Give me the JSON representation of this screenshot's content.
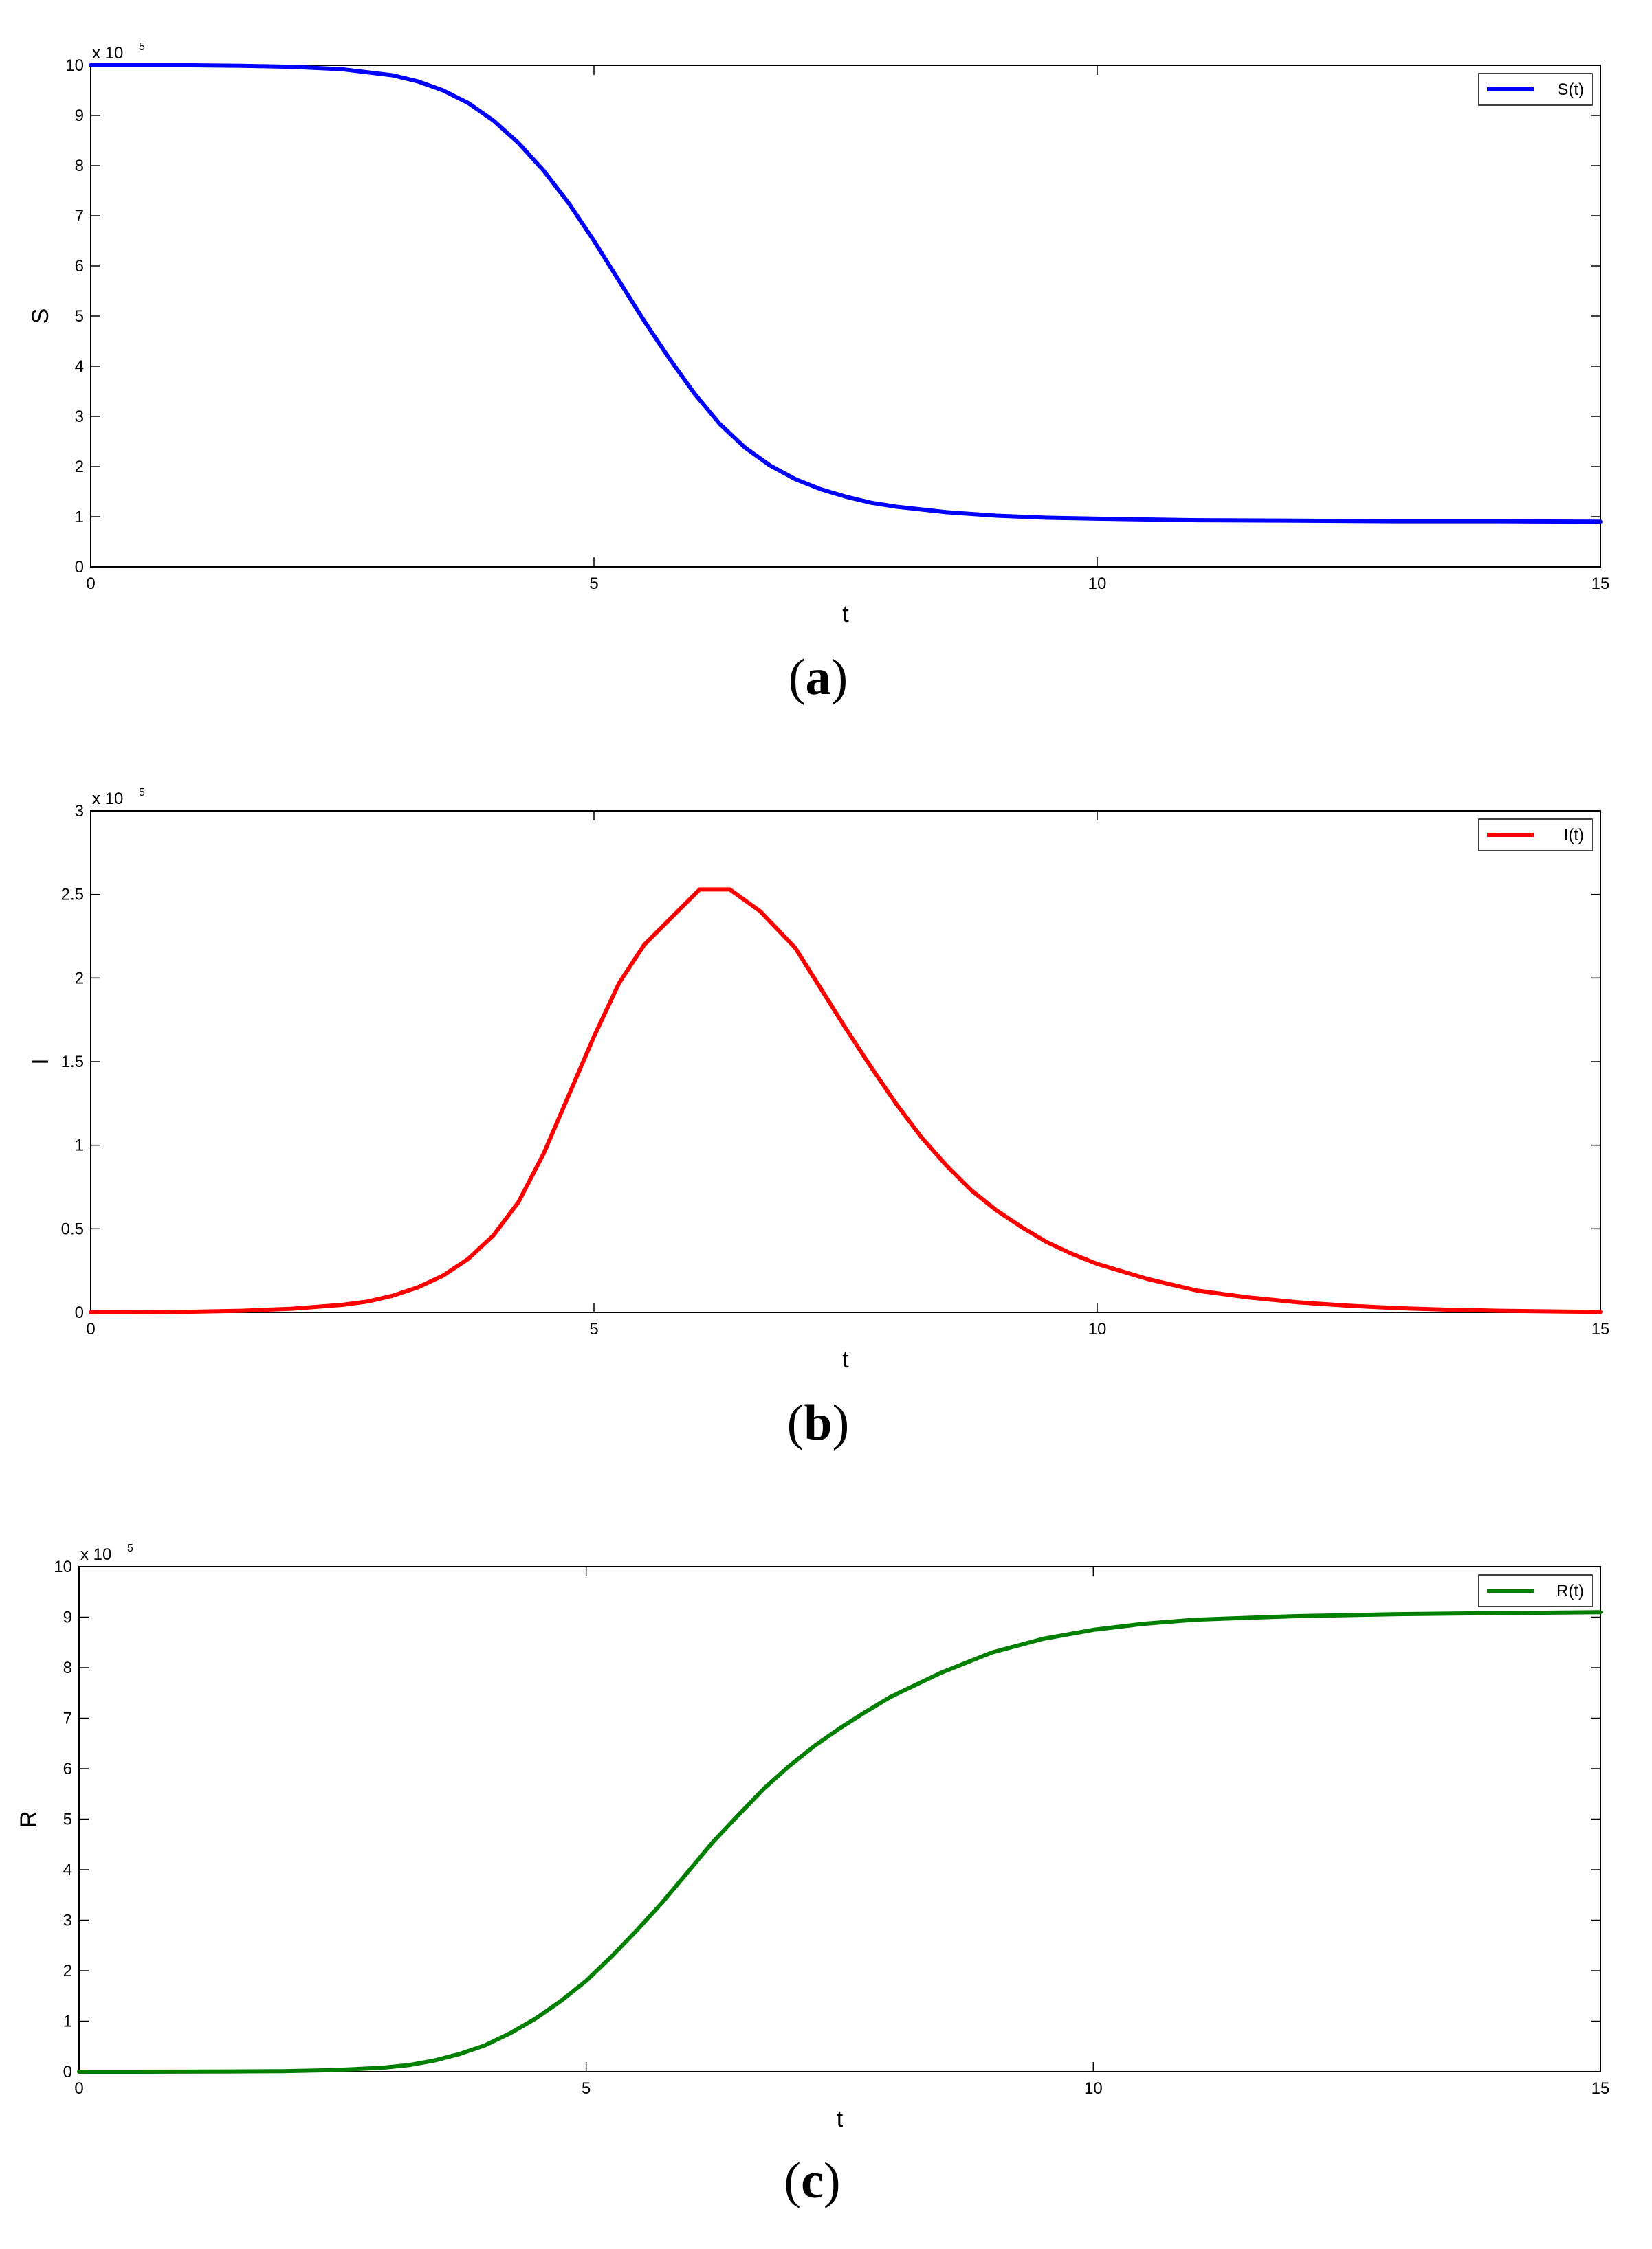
{
  "chart_data": [
    {
      "type": "line",
      "caption_letter": "a",
      "xlabel": "t",
      "ylabel": "S",
      "multiplier_base": "x 10",
      "multiplier_exp": "5",
      "xlim": [
        0,
        15
      ],
      "ylim": [
        0,
        10
      ],
      "xticks": [
        0,
        5,
        10,
        15
      ],
      "yticks": [
        0,
        1,
        2,
        3,
        4,
        5,
        6,
        7,
        8,
        9,
        10
      ],
      "grid": false,
      "legend_position": "top-right",
      "series": [
        {
          "name": "S(t)",
          "color": "#0000ff",
          "x": [
            0,
            0.5,
            1,
            1.5,
            2,
            2.5,
            3,
            3.25,
            3.5,
            3.75,
            4,
            4.25,
            4.5,
            4.75,
            5,
            5.25,
            5.5,
            5.75,
            6,
            6.25,
            6.5,
            6.75,
            7,
            7.25,
            7.5,
            7.75,
            8,
            8.5,
            9,
            9.5,
            10,
            11,
            12,
            13,
            14,
            15
          ],
          "y": [
            10,
            10,
            10,
            9.99,
            9.97,
            9.92,
            9.8,
            9.68,
            9.5,
            9.25,
            8.9,
            8.45,
            7.9,
            7.25,
            6.5,
            5.7,
            4.9,
            4.15,
            3.45,
            2.85,
            2.38,
            2.02,
            1.75,
            1.55,
            1.4,
            1.28,
            1.2,
            1.09,
            1.02,
            0.98,
            0.96,
            0.93,
            0.92,
            0.91,
            0.91,
            0.9
          ]
        }
      ]
    },
    {
      "type": "line",
      "caption_letter": "b",
      "xlabel": "t",
      "ylabel": "I",
      "multiplier_base": "x 10",
      "multiplier_exp": "5",
      "xlim": [
        0,
        15
      ],
      "ylim": [
        0,
        3
      ],
      "xticks": [
        0,
        5,
        10,
        15
      ],
      "yticks": [
        0,
        0.5,
        1,
        1.5,
        2,
        2.5,
        3
      ],
      "grid": false,
      "legend_position": "top-right",
      "series": [
        {
          "name": "I(t)",
          "color": "#ff0000",
          "x": [
            0,
            0.5,
            1,
            1.5,
            2,
            2.5,
            2.75,
            3,
            3.25,
            3.5,
            3.75,
            4,
            4.25,
            4.5,
            4.75,
            5,
            5.25,
            5.5,
            5.8,
            6.05,
            6.35,
            6.65,
            7,
            7.25,
            7.5,
            7.75,
            8,
            8.25,
            8.5,
            8.75,
            9,
            9.25,
            9.5,
            9.75,
            10,
            10.5,
            11,
            11.5,
            12,
            12.5,
            13,
            13.5,
            14,
            14.5,
            15
          ],
          "y": [
            0,
            0.001,
            0.004,
            0.01,
            0.022,
            0.045,
            0.065,
            0.1,
            0.15,
            0.22,
            0.32,
            0.46,
            0.66,
            0.95,
            1.3,
            1.65,
            1.97,
            2.2,
            2.38,
            2.53,
            2.53,
            2.4,
            2.18,
            1.94,
            1.7,
            1.47,
            1.25,
            1.05,
            0.88,
            0.73,
            0.61,
            0.51,
            0.42,
            0.35,
            0.29,
            0.2,
            0.13,
            0.09,
            0.06,
            0.04,
            0.025,
            0.016,
            0.01,
            0.006,
            0.003
          ]
        }
      ]
    },
    {
      "type": "line",
      "caption_letter": "c",
      "xlabel": "t",
      "ylabel": "R",
      "multiplier_base": "x 10",
      "multiplier_exp": "5",
      "xlim": [
        0,
        15
      ],
      "ylim": [
        0,
        10
      ],
      "xticks": [
        0,
        5,
        10,
        15
      ],
      "yticks": [
        0,
        1,
        2,
        3,
        4,
        5,
        6,
        7,
        8,
        9,
        10
      ],
      "grid": false,
      "legend_position": "top-right",
      "series": [
        {
          "name": "R(t)",
          "color": "#007f00",
          "x": [
            0,
            0.5,
            1,
            1.5,
            2,
            2.5,
            3,
            3.25,
            3.5,
            3.75,
            4,
            4.25,
            4.5,
            4.75,
            5,
            5.25,
            5.5,
            5.75,
            6,
            6.25,
            6.5,
            6.75,
            7,
            7.25,
            7.5,
            7.75,
            8,
            8.5,
            9,
            9.5,
            10,
            10.5,
            11,
            12,
            13,
            14,
            15
          ],
          "y": [
            0,
            0,
            0.002,
            0.005,
            0.01,
            0.03,
            0.08,
            0.13,
            0.22,
            0.35,
            0.52,
            0.76,
            1.05,
            1.4,
            1.8,
            2.28,
            2.8,
            3.35,
            3.95,
            4.55,
            5.08,
            5.6,
            6.05,
            6.45,
            6.8,
            7.12,
            7.42,
            7.9,
            8.3,
            8.57,
            8.75,
            8.87,
            8.95,
            9.02,
            9.06,
            9.08,
            9.1
          ]
        }
      ]
    }
  ]
}
